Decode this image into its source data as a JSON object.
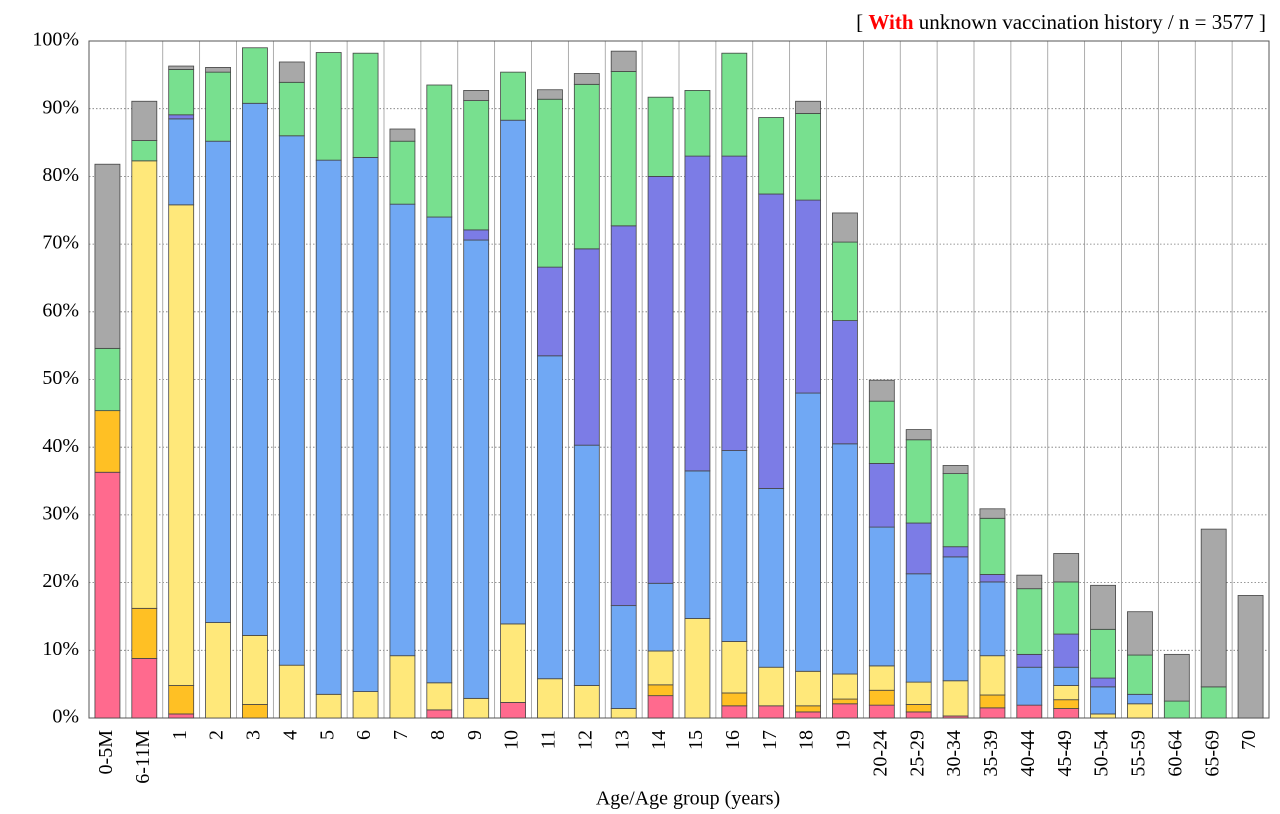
{
  "chart_data": {
    "type": "stacked_bar",
    "title": {
      "open": "[",
      "emphasis": "With",
      "text": "unknown vaccination history / n = 3577",
      "close": "]"
    },
    "x_label": "Age/Age group (years)",
    "categories": [
      "0-5M",
      "6-11M",
      "1",
      "2",
      "3",
      "4",
      "5",
      "6",
      "7",
      "8",
      "9",
      "10",
      "11",
      "12",
      "13",
      "14",
      "15",
      "16",
      "17",
      "18",
      "19",
      "20-24",
      "25-29",
      "30-34",
      "35-39",
      "40-44",
      "45-49",
      "50-54",
      "55-59",
      "60-64",
      "65-69",
      "70"
    ],
    "series": [
      {
        "color": "#ff6a8e",
        "values": [
          36.3,
          8.8,
          0.6,
          0,
          0,
          0,
          0,
          0,
          0,
          1.2,
          0,
          2.3,
          0,
          0,
          0,
          3.3,
          0,
          1.8,
          1.8,
          0.9,
          2.1,
          1.9,
          0.9,
          0.3,
          1.5,
          1.9,
          1.4,
          0,
          0,
          0,
          0,
          0
        ]
      },
      {
        "color": "#ffc024",
        "values": [
          9.1,
          7.4,
          4.2,
          0,
          2.0,
          0,
          0,
          0,
          0,
          0,
          0,
          0,
          0,
          0,
          0,
          1.6,
          0,
          1.9,
          0,
          0.9,
          0.7,
          2.2,
          1.1,
          0,
          1.9,
          0,
          1.3,
          0,
          0,
          0,
          0,
          0
        ]
      },
      {
        "color": "#ffe87a",
        "values": [
          0,
          66.1,
          71.0,
          14.1,
          10.2,
          7.8,
          3.5,
          3.9,
          9.2,
          4.0,
          2.9,
          11.6,
          5.8,
          4.8,
          1.4,
          5.0,
          14.7,
          7.6,
          5.7,
          5.1,
          3.7,
          3.6,
          3.3,
          5.2,
          5.8,
          0,
          2.1,
          0.6,
          2.1,
          0,
          0,
          0
        ]
      },
      {
        "color": "#70a8f4",
        "values": [
          0,
          0,
          12.7,
          71.1,
          78.6,
          78.2,
          78.9,
          78.9,
          66.7,
          68.8,
          67.7,
          74.4,
          47.7,
          35.5,
          15.2,
          10.0,
          21.8,
          28.2,
          26.4,
          41.1,
          34.0,
          20.5,
          16.0,
          18.3,
          10.9,
          5.6,
          2.7,
          4.0,
          1.4,
          0,
          0,
          0
        ]
      },
      {
        "color": "#7c7ce6",
        "values": [
          0,
          0,
          0.6,
          0,
          0,
          0,
          0,
          0,
          0,
          0,
          1.5,
          0,
          13.1,
          29.0,
          56.1,
          60.1,
          46.5,
          43.5,
          43.5,
          28.5,
          18.2,
          9.4,
          7.5,
          1.5,
          1.1,
          1.9,
          4.9,
          1.3,
          0,
          0,
          0,
          0
        ]
      },
      {
        "color": "#78e08f",
        "values": [
          9.2,
          3.0,
          6.7,
          10.2,
          8.2,
          7.9,
          15.9,
          15.4,
          9.3,
          19.5,
          19.1,
          7.1,
          24.8,
          24.3,
          22.8,
          11.7,
          9.7,
          15.2,
          11.3,
          12.8,
          11.6,
          9.2,
          12.3,
          10.8,
          8.3,
          9.7,
          7.7,
          7.2,
          5.8,
          2.5,
          4.6,
          0
        ]
      },
      {
        "color": "#a8a8a8",
        "values": [
          27.2,
          5.8,
          0.5,
          0.7,
          0,
          3.0,
          0,
          0,
          1.8,
          0,
          1.5,
          0,
          1.4,
          1.6,
          3.0,
          0,
          0,
          0,
          0,
          1.8,
          4.3,
          3.1,
          1.5,
          1.2,
          1.4,
          2.0,
          4.2,
          6.5,
          6.4,
          6.9,
          23.3,
          18.1
        ]
      }
    ],
    "ylim": [
      0,
      100
    ],
    "yticks": [
      {
        "value": 0,
        "label": "0%"
      },
      {
        "value": 10,
        "label": "10%"
      },
      {
        "value": 20,
        "label": "20%"
      },
      {
        "value": 30,
        "label": "30%"
      },
      {
        "value": 40,
        "label": "40%"
      },
      {
        "value": 50,
        "label": "50%"
      },
      {
        "value": 60,
        "label": "60%"
      },
      {
        "value": 70,
        "label": "70%"
      },
      {
        "value": 80,
        "label": "80%"
      },
      {
        "value": 90,
        "label": "90%"
      },
      {
        "value": 100,
        "label": "100%"
      }
    ],
    "grid": true
  }
}
